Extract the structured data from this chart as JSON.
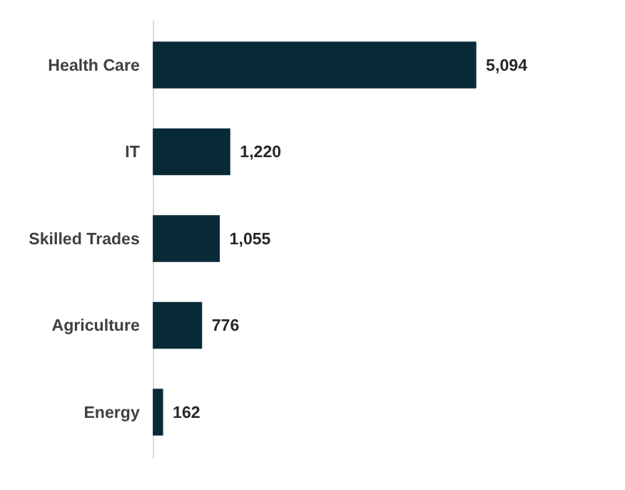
{
  "chart_data": {
    "type": "bar",
    "orientation": "horizontal",
    "categories": [
      "Health Care",
      "IT",
      "Skilled Trades",
      "Agriculture",
      "Energy"
    ],
    "values": [
      5094,
      1220,
      1055,
      776,
      162
    ],
    "color": "#082a36",
    "value_labels": [
      "5,094",
      "1,220",
      "1,055",
      "776",
      "162"
    ],
    "tick_labels": "y"
  }
}
